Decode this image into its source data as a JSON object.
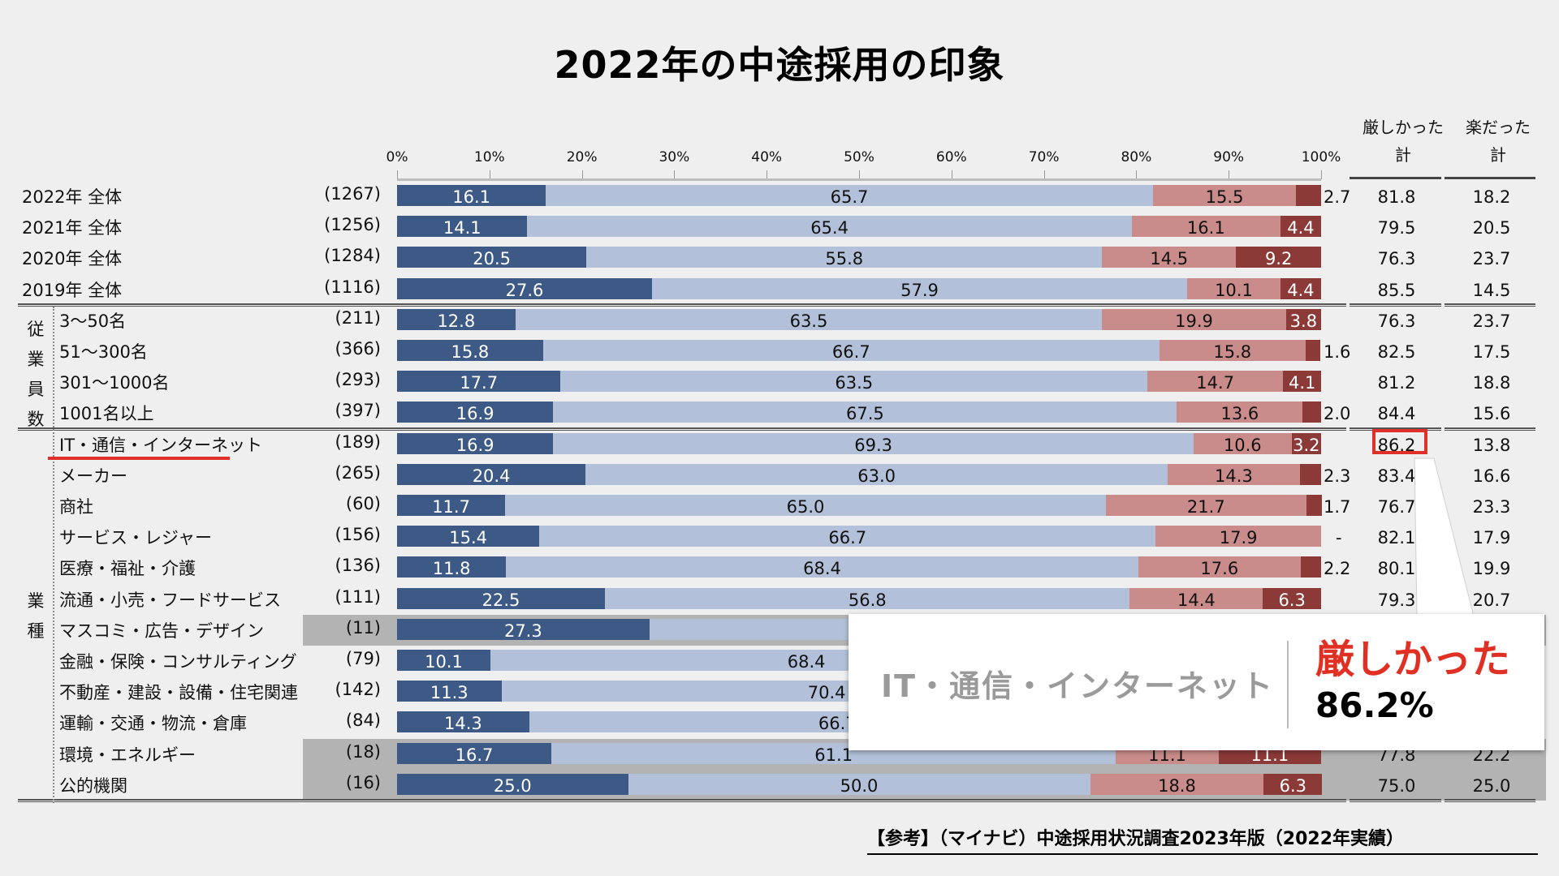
{
  "title": "2022年の中途採用の印象",
  "footer": "【参考】（マイナビ）中途採用状況調査2023年版（2022年実績）",
  "highlight": {
    "industry": "IT・通信・インターネット",
    "label": "厳しかった",
    "value": "86.2%"
  },
  "colors": {
    "very_hard": "#3d5a87",
    "somewhat_hard": "#b2c1d9",
    "somewhat_easy": "#c98c8a",
    "very_easy": "#8b3a37",
    "highlight": "#e0302a",
    "gray_band": "#b3b3b3"
  },
  "groups": [
    {
      "chars": [
        "従",
        "業",
        "員",
        "数"
      ]
    },
    {
      "chars": [
        "業",
        "種"
      ]
    }
  ],
  "chart_data": {
    "type": "bar",
    "orientation": "horizontal-stacked-100",
    "title": "2022年の中途採用の印象",
    "x_ticks": [
      "0%",
      "10%",
      "20%",
      "30%",
      "40%",
      "50%",
      "60%",
      "70%",
      "80%",
      "90%",
      "100%"
    ],
    "xlim": [
      0,
      100
    ],
    "total_columns": [
      "厳しかった計",
      "楽だった計"
    ],
    "total_headers": [
      [
        "厳しかった",
        "計"
      ],
      [
        "楽だった",
        "計"
      ]
    ],
    "series_order": [
      "very_hard",
      "somewhat_hard",
      "somewhat_easy",
      "very_easy"
    ],
    "rows": [
      {
        "label": "2022年 全体",
        "n": "(1267)",
        "values": [
          16.1,
          65.7,
          15.5,
          2.7
        ],
        "labels": [
          "16.1",
          "65.7",
          "15.5",
          "2.7"
        ],
        "hard_total": "81.8",
        "easy_total": "18.2"
      },
      {
        "label": "2021年 全体",
        "n": "(1256)",
        "values": [
          14.1,
          65.4,
          16.1,
          4.4
        ],
        "labels": [
          "14.1",
          "65.4",
          "16.1",
          "4.4"
        ],
        "hard_total": "79.5",
        "easy_total": "20.5"
      },
      {
        "label": "2020年 全体",
        "n": "(1284)",
        "values": [
          20.5,
          55.8,
          14.5,
          9.2
        ],
        "labels": [
          "20.5",
          "55.8",
          "14.5",
          "9.2"
        ],
        "hard_total": "76.3",
        "easy_total": "23.7"
      },
      {
        "label": "2019年 全体",
        "n": "(1116)",
        "values": [
          27.6,
          57.9,
          10.1,
          4.4
        ],
        "labels": [
          "27.6",
          "57.9",
          "10.1",
          "4.4"
        ],
        "hard_total": "85.5",
        "easy_total": "14.5"
      },
      {
        "label": "3〜50名",
        "n": "(211)",
        "values": [
          12.8,
          63.5,
          19.9,
          3.8
        ],
        "labels": [
          "12.8",
          "63.5",
          "19.9",
          "3.8"
        ],
        "hard_total": "76.3",
        "easy_total": "23.7"
      },
      {
        "label": "51〜300名",
        "n": "(366)",
        "values": [
          15.8,
          66.7,
          15.8,
          1.6
        ],
        "labels": [
          "15.8",
          "66.7",
          "15.8",
          "1.6"
        ],
        "hard_total": "82.5",
        "easy_total": "17.5"
      },
      {
        "label": "301〜1000名",
        "n": "(293)",
        "values": [
          17.7,
          63.5,
          14.7,
          4.1
        ],
        "labels": [
          "17.7",
          "63.5",
          "14.7",
          "4.1"
        ],
        "hard_total": "81.2",
        "easy_total": "18.8"
      },
      {
        "label": "1001名以上",
        "n": "(397)",
        "values": [
          16.9,
          67.5,
          13.6,
          2.0
        ],
        "labels": [
          "16.9",
          "67.5",
          "13.6",
          "2.0"
        ],
        "hard_total": "84.4",
        "easy_total": "15.6"
      },
      {
        "label": "IT・通信・インターネット",
        "n": "(189)",
        "values": [
          16.9,
          69.3,
          10.6,
          3.2
        ],
        "labels": [
          "16.9",
          "69.3",
          "10.6",
          "3.2"
        ],
        "hard_total": "86.2",
        "easy_total": "13.8"
      },
      {
        "label": "メーカー",
        "n": "(265)",
        "values": [
          20.4,
          63.0,
          14.3,
          2.3
        ],
        "labels": [
          "20.4",
          "63.0",
          "14.3",
          "2.3"
        ],
        "hard_total": "83.4",
        "easy_total": "16.6"
      },
      {
        "label": "商社",
        "n": "(60)",
        "values": [
          11.7,
          65.0,
          21.7,
          1.7
        ],
        "labels": [
          "11.7",
          "65.0",
          "21.7",
          "1.7"
        ],
        "hard_total": "76.7",
        "easy_total": "23.3"
      },
      {
        "label": "サービス・レジャー",
        "n": "(156)",
        "values": [
          15.4,
          66.7,
          17.9,
          0
        ],
        "labels": [
          "15.4",
          "66.7",
          "17.9",
          "-"
        ],
        "hard_total": "82.1",
        "easy_total": "17.9"
      },
      {
        "label": "医療・福祉・介護",
        "n": "(136)",
        "values": [
          11.8,
          68.4,
          17.6,
          2.2
        ],
        "labels": [
          "11.8",
          "68.4",
          "17.6",
          "2.2"
        ],
        "hard_total": "80.1",
        "easy_total": "19.9"
      },
      {
        "label": "流通・小売・フードサービス",
        "n": "(111)",
        "values": [
          22.5,
          56.8,
          14.4,
          6.3
        ],
        "labels": [
          "22.5",
          "56.8",
          "14.4",
          "6.3"
        ],
        "hard_total": "79.3",
        "easy_total": "20.7"
      },
      {
        "label": "マスコミ・広告・デザイン",
        "n": "(11)",
        "values": [
          27.3,
          null,
          null,
          null
        ],
        "labels": [
          "27.3",
          null,
          null,
          null
        ],
        "hard_total": null,
        "easy_total": null,
        "small_sample": true
      },
      {
        "label": "金融・保険・コンサルティング",
        "n": "(79)",
        "values": [
          10.1,
          68.4,
          null,
          null
        ],
        "labels": [
          "10.1",
          "68.4",
          null,
          null
        ],
        "hard_total": null,
        "easy_total": null
      },
      {
        "label": "不動産・建設・設備・住宅関連",
        "n": "(142)",
        "values": [
          11.3,
          70.4,
          null,
          null
        ],
        "labels": [
          "11.3",
          "70.4",
          null,
          null
        ],
        "hard_total": null,
        "easy_total": null
      },
      {
        "label": "運輸・交通・物流・倉庫",
        "n": "(84)",
        "values": [
          14.3,
          66.7,
          null,
          null
        ],
        "labels": [
          "14.3",
          "66.7",
          null,
          null
        ],
        "hard_total": null,
        "easy_total": null
      },
      {
        "label": "環境・エネルギー",
        "n": "(18)",
        "values": [
          16.7,
          61.1,
          11.1,
          11.1
        ],
        "labels": [
          "16.7",
          "61.1",
          "11.1",
          "11.1"
        ],
        "hard_total": "77.8",
        "easy_total": "22.2",
        "small_sample": true
      },
      {
        "label": "公的機関",
        "n": "(16)",
        "values": [
          25.0,
          50.0,
          18.8,
          6.3
        ],
        "labels": [
          "25.0",
          "50.0",
          "18.8",
          "6.3"
        ],
        "hard_total": "75.0",
        "easy_total": "25.0",
        "small_sample": true
      }
    ]
  }
}
